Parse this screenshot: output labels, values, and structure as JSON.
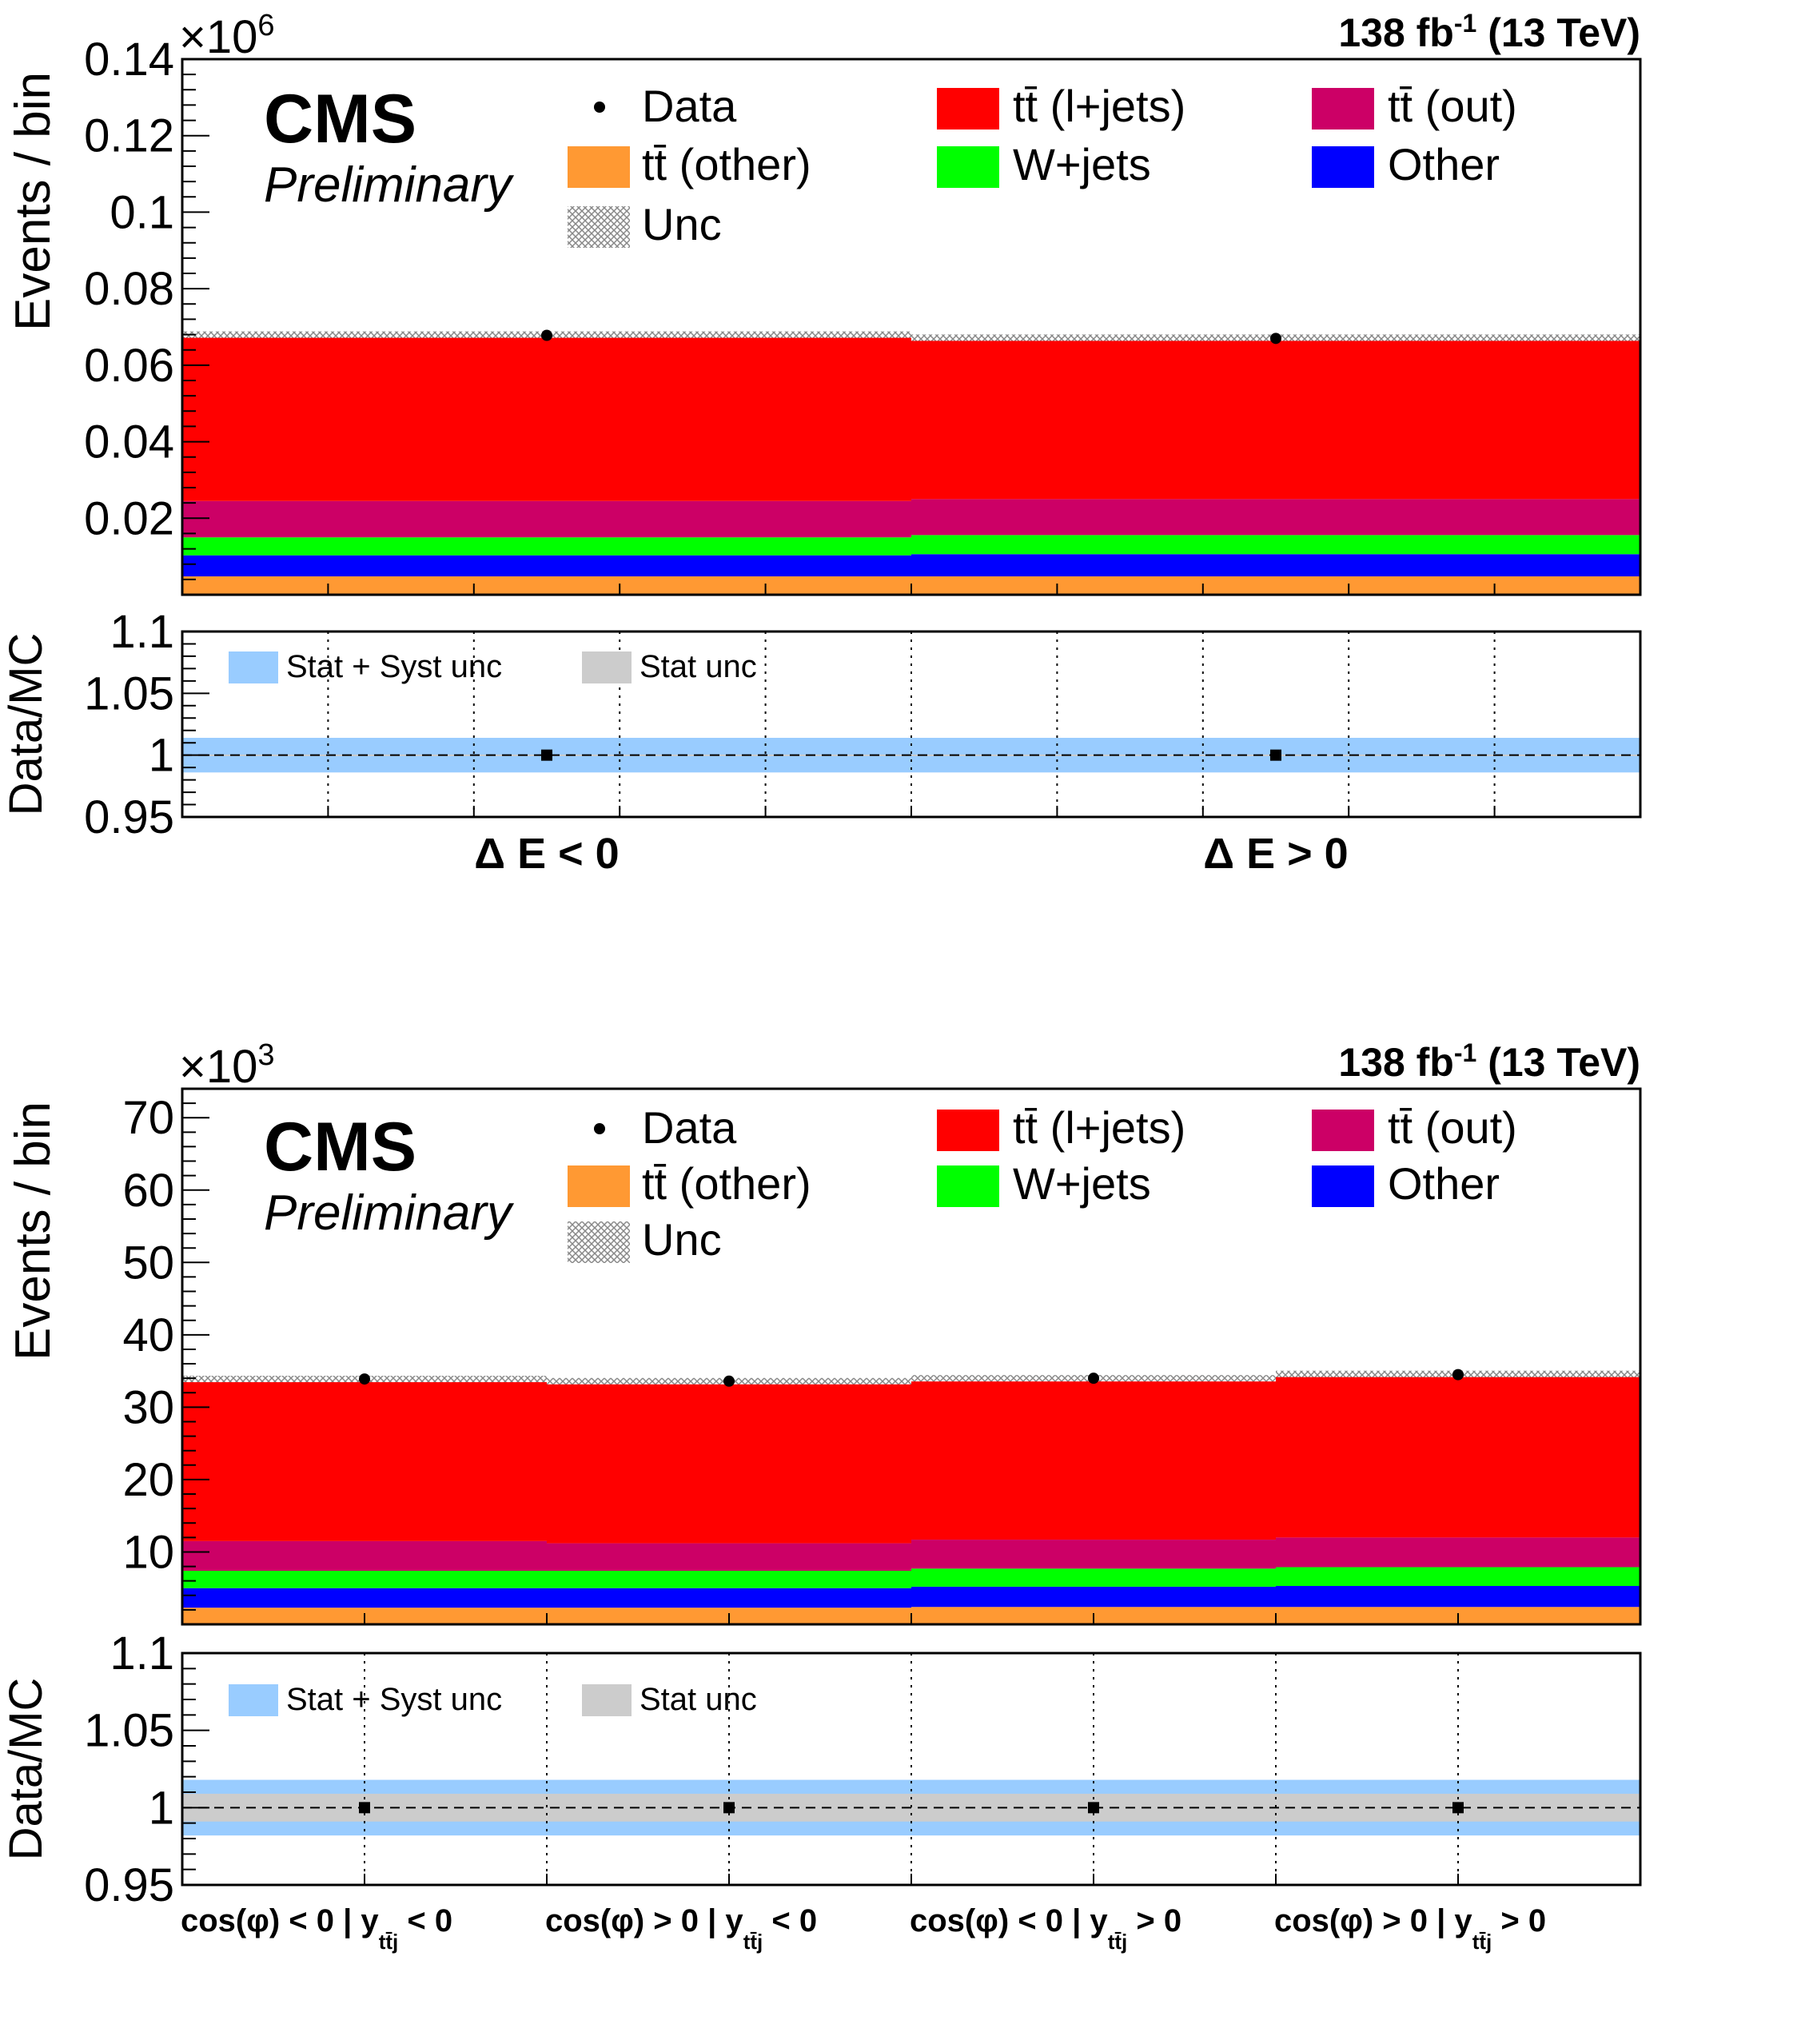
{
  "lumi": {
    "value": "138 fb",
    "exp": "-1",
    "energy": "(13 TeV)"
  },
  "cms": {
    "label": "CMS",
    "sublabel": "Preliminary"
  },
  "legend": {
    "data": "Data",
    "tt_ljets": "tt̄ (l+jets)",
    "tt_out": "tt̄ (out)",
    "tt_other": "tt̄ (other)",
    "wjets": "W+jets",
    "other": "Other",
    "unc": "Unc"
  },
  "ratio_legend": {
    "stat_syst": "Stat + Syst unc",
    "stat": "Stat unc"
  },
  "colors": {
    "tt_ljets": "#ff0000",
    "tt_out": "#cc0066",
    "wjets": "#00ff00",
    "other": "#0000ff",
    "tt_other": "#ff9933",
    "stat_syst": "#99ccff",
    "stat": "#cccccc",
    "data": "#000000"
  },
  "chart_data": [
    {
      "type": "bar",
      "stacked": true,
      "ylabel": "Events / bin",
      "scale_label": "×10",
      "scale_exp": "6",
      "ylim": [
        0,
        0.14
      ],
      "yticks": [
        "0.02",
        "0.04",
        "0.06",
        "0.08",
        "0.1",
        "0.12",
        "0.14"
      ],
      "categories": [
        "Δ E < 0",
        "Δ E > 0"
      ],
      "series": [
        {
          "name": "tt̄ (other)",
          "key": "tt_other",
          "values": [
            0.0048,
            0.0048
          ]
        },
        {
          "name": "Other",
          "key": "other",
          "values": [
            0.0055,
            0.0058
          ]
        },
        {
          "name": "W+jets",
          "key": "wjets",
          "values": [
            0.0047,
            0.005
          ]
        },
        {
          "name": "tt̄ (out)",
          "key": "tt_out",
          "values": [
            0.0095,
            0.0094
          ]
        },
        {
          "name": "tt̄ (l+jets)",
          "key": "tt_ljets",
          "values": [
            0.0435,
            0.0422
          ]
        }
      ],
      "data": [
        0.0678,
        0.067
      ],
      "ratio": {
        "ylabel": "Data/MC",
        "ylim": [
          0.95,
          1.1
        ],
        "yticks": [
          "0.95",
          "1",
          "1.05",
          "1.1"
        ],
        "values": [
          1.0,
          1.0
        ],
        "stat_syst_band": [
          0.986,
          1.014
        ],
        "stat_band": [
          0.9995,
          1.0005
        ]
      }
    },
    {
      "type": "bar",
      "stacked": true,
      "ylabel": "Events / bin",
      "scale_label": "×10",
      "scale_exp": "3",
      "ylim": [
        0,
        74
      ],
      "yticks": [
        "10",
        "20",
        "30",
        "40",
        "50",
        "60",
        "70"
      ],
      "categories": [
        "cos(φ) < 0 | y",
        "cos(φ) > 0 | y",
        "cos(φ) < 0 | y",
        "cos(φ) > 0 | y"
      ],
      "category_subscript": "tt̄j",
      "category_suffix": [
        "< 0",
        "< 0",
        "> 0",
        "> 0"
      ],
      "series": [
        {
          "name": "tt̄ (other)",
          "key": "tt_other",
          "values": [
            2.3,
            2.3,
            2.4,
            2.4
          ]
        },
        {
          "name": "Other",
          "key": "other",
          "values": [
            2.7,
            2.7,
            2.8,
            2.9
          ]
        },
        {
          "name": "W+jets",
          "key": "wjets",
          "values": [
            2.4,
            2.4,
            2.5,
            2.6
          ]
        },
        {
          "name": "tt̄ (out)",
          "key": "tt_out",
          "values": [
            4.1,
            3.8,
            4.0,
            4.1
          ]
        },
        {
          "name": "tt̄ (l+jets)",
          "key": "tt_ljets",
          "values": [
            22.4,
            22.4,
            22.3,
            22.6
          ]
        }
      ],
      "data": [
        33.9,
        33.6,
        34.0,
        34.5
      ],
      "ratio": {
        "ylabel": "Data/MC",
        "ylim": [
          0.95,
          1.1
        ],
        "yticks": [
          "0.95",
          "1",
          "1.05",
          "1.1"
        ],
        "values": [
          1.0,
          1.0,
          1.0,
          1.0
        ],
        "stat_syst_band": [
          0.982,
          1.018
        ],
        "stat_band": [
          0.991,
          1.009
        ]
      }
    }
  ]
}
